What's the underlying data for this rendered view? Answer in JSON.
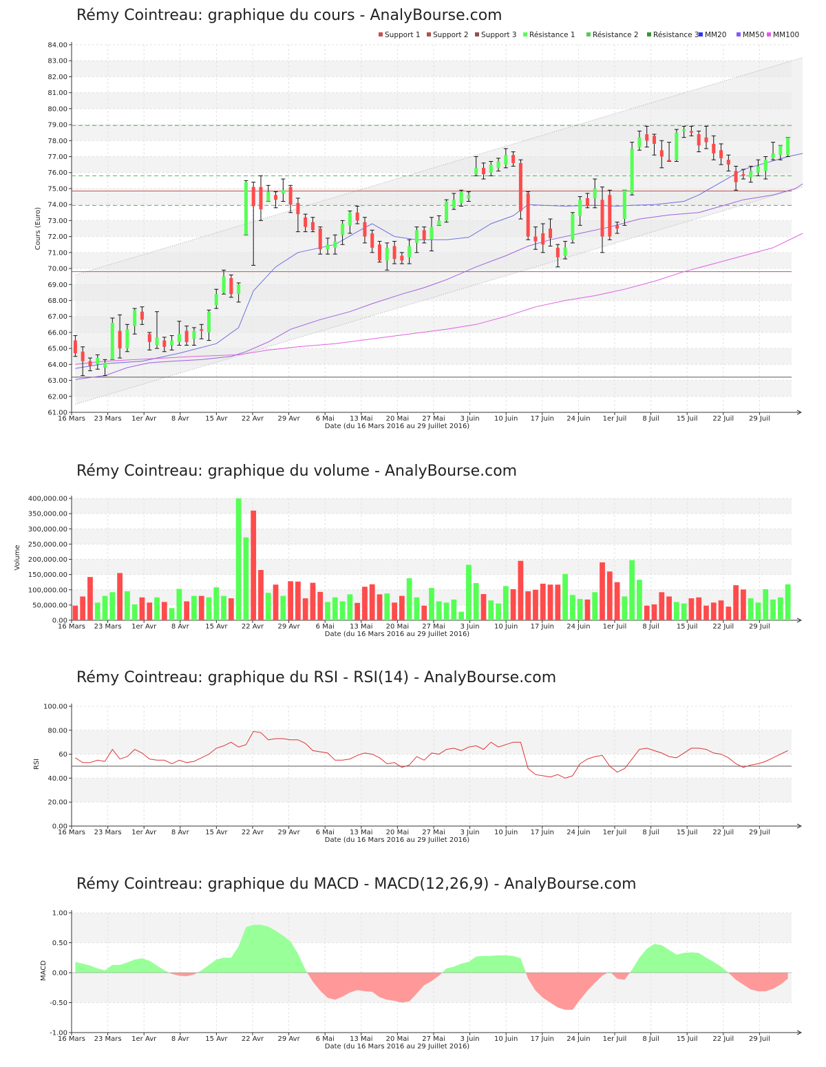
{
  "x_axis": {
    "ticks": [
      "16 Mars",
      "23 Mars",
      "1er Avr",
      "8 Avr",
      "15 Avr",
      "22 Avr",
      "29 Avr",
      "6 Mai",
      "13 Mai",
      "20 Mai",
      "27 Mai",
      "3 Juin",
      "10 Juin",
      "17 Juin",
      "24 Juin",
      "1er Juil",
      "8 Juil",
      "15 Juil",
      "22 Juil",
      "29 Juil"
    ],
    "label": "Date (du 16 Mars 2016 au 29 Juillet 2016)"
  },
  "colors": {
    "up": "#55ff55",
    "down": "#ff4b4b",
    "grid_band": "#f3f3f3",
    "support": "#c85050",
    "resistance": "#55b055",
    "mm20": "#6f6fe0",
    "mm50": "#a060e0",
    "mm100": "#e060e0",
    "rsi_line": "#dd3333",
    "macd_pos": "#99ff99",
    "macd_neg": "#ff9999"
  },
  "chart_data": [
    {
      "id": "price",
      "type": "candlestick",
      "title": "Rémy Cointreau: graphique du cours - AnalyBourse.com",
      "ylabel": "Cours (Euro)",
      "ylim": [
        61,
        84
      ],
      "yticks": [
        "61.00",
        "62.00",
        "63.00",
        "64.00",
        "65.00",
        "66.00",
        "67.00",
        "68.00",
        "69.00",
        "70.00",
        "71.00",
        "72.00",
        "73.00",
        "74.00",
        "75.00",
        "76.00",
        "77.00",
        "78.00",
        "79.00",
        "80.00",
        "81.00",
        "82.00",
        "83.00",
        "84.00"
      ],
      "legend": [
        "Support 1",
        "Support 2",
        "Support 3",
        "Résistance 1",
        "Résistance 2",
        "Résistance 3",
        "MM20",
        "MM50",
        "MM100"
      ],
      "levels": {
        "support1": 74.85,
        "support2": 69.8,
        "support3": 63.2,
        "resistance1": 78.95,
        "resistance2": 75.8,
        "resistance3": 73.95
      },
      "candles": [
        [
          65.5,
          64.7,
          65.8,
          64.5
        ],
        [
          64.8,
          64.2,
          65.1,
          63.3
        ],
        [
          64.2,
          63.9,
          64.4,
          63.6
        ],
        [
          64.0,
          64.4,
          64.6,
          63.7
        ],
        [
          63.8,
          64.1,
          64.3,
          63.3
        ],
        [
          64.3,
          66.6,
          66.9,
          64.3
        ],
        [
          66.1,
          65.0,
          67.1,
          64.4
        ],
        [
          65.0,
          66.2,
          66.5,
          64.8
        ],
        [
          66.4,
          67.4,
          67.5,
          65.9
        ],
        [
          67.3,
          66.8,
          67.6,
          66.5
        ],
        [
          65.9,
          65.4,
          66.0,
          64.9
        ],
        [
          65.2,
          65.7,
          67.3,
          65.0
        ],
        [
          65.5,
          65.1,
          65.7,
          64.8
        ],
        [
          65.2,
          65.5,
          65.8,
          64.9
        ],
        [
          65.4,
          65.9,
          66.7,
          65.2
        ],
        [
          66.1,
          65.4,
          66.4,
          65.2
        ],
        [
          65.6,
          66.1,
          66.3,
          65.2
        ],
        [
          66.2,
          66.1,
          66.5,
          65.6
        ],
        [
          66.0,
          67.3,
          67.4,
          65.5
        ],
        [
          67.7,
          68.4,
          68.7,
          67.5
        ],
        [
          68.5,
          69.5,
          69.9,
          68.4
        ],
        [
          69.4,
          68.4,
          69.6,
          68.2
        ],
        [
          68.4,
          69.0,
          69.1,
          67.9
        ],
        [
          72.1,
          75.4,
          75.5,
          72.1
        ],
        [
          75.1,
          73.9,
          75.4,
          70.2
        ],
        [
          75.1,
          73.7,
          75.8,
          73.0
        ],
        [
          74.2,
          74.8,
          75.2,
          74.2
        ],
        [
          74.6,
          74.3,
          74.8,
          73.8
        ],
        [
          74.7,
          74.9,
          75.6,
          74.2
        ],
        [
          75.1,
          74.0,
          75.2,
          73.5
        ],
        [
          74.1,
          73.4,
          74.4,
          72.3
        ],
        [
          73.2,
          72.6,
          73.4,
          72.3
        ],
        [
          72.9,
          72.4,
          73.2,
          72.3
        ],
        [
          72.5,
          71.2,
          72.6,
          70.9
        ],
        [
          71.2,
          71.5,
          71.9,
          70.9
        ],
        [
          71.3,
          71.7,
          72.1,
          70.9
        ],
        [
          72.1,
          72.8,
          73.0,
          71.5
        ],
        [
          72.7,
          73.5,
          73.6,
          72.2
        ],
        [
          73.5,
          73.0,
          73.9,
          72.8
        ],
        [
          72.9,
          72.0,
          73.2,
          71.6
        ],
        [
          72.2,
          71.3,
          72.4,
          71.0
        ],
        [
          71.5,
          70.5,
          71.7,
          70.4
        ],
        [
          70.5,
          71.3,
          71.6,
          69.9
        ],
        [
          71.4,
          70.6,
          71.7,
          70.3
        ],
        [
          70.8,
          70.5,
          71.0,
          70.3
        ],
        [
          70.7,
          71.4,
          71.8,
          70.3
        ],
        [
          71.6,
          72.4,
          72.6,
          71.0
        ],
        [
          72.4,
          71.8,
          72.6,
          71.6
        ],
        [
          71.8,
          72.6,
          73.2,
          71.1
        ],
        [
          72.7,
          73.0,
          73.3,
          72.7
        ],
        [
          73.0,
          74.2,
          74.3,
          72.9
        ],
        [
          73.8,
          74.3,
          74.7,
          73.7
        ],
        [
          74.1,
          74.8,
          74.9,
          73.9
        ],
        [
          74.4,
          74.6,
          74.8,
          74.2
        ],
        [
          75.9,
          76.3,
          77.0,
          75.8
        ],
        [
          76.3,
          75.9,
          76.6,
          75.6
        ],
        [
          76.0,
          76.5,
          76.7,
          75.8
        ],
        [
          76.3,
          76.7,
          76.9,
          76.1
        ],
        [
          76.5,
          77.1,
          77.5,
          76.3
        ],
        [
          77.1,
          76.6,
          77.3,
          76.4
        ],
        [
          76.6,
          73.6,
          76.8,
          73.1
        ],
        [
          74.7,
          72.0,
          74.8,
          71.8
        ],
        [
          72.0,
          71.7,
          72.6,
          71.2
        ],
        [
          72.2,
          71.5,
          72.8,
          71.0
        ],
        [
          72.5,
          71.9,
          73.1,
          71.4
        ],
        [
          71.3,
          70.7,
          71.5,
          70.1
        ],
        [
          70.8,
          71.3,
          71.7,
          70.6
        ],
        [
          71.8,
          73.4,
          73.5,
          71.6
        ],
        [
          73.3,
          74.3,
          74.5,
          72.7
        ],
        [
          74.4,
          73.9,
          74.7,
          73.8
        ],
        [
          74.4,
          75.0,
          75.6,
          73.8
        ],
        [
          74.3,
          72.0,
          75.1,
          71.0
        ],
        [
          74.6,
          72.0,
          74.9,
          71.8
        ],
        [
          72.7,
          72.5,
          72.9,
          72.2
        ],
        [
          73.1,
          74.9,
          74.9,
          72.7
        ],
        [
          74.7,
          77.5,
          77.9,
          74.6
        ],
        [
          77.6,
          78.2,
          78.6,
          77.4
        ],
        [
          78.4,
          78.0,
          78.9,
          77.6
        ],
        [
          78.3,
          77.8,
          78.4,
          77.1
        ],
        [
          77.4,
          77.0,
          78.0,
          76.3
        ],
        [
          76.8,
          76.7,
          77.9,
          76.7
        ],
        [
          76.8,
          78.5,
          78.7,
          76.7
        ],
        [
          78.6,
          78.7,
          78.9,
          78.2
        ],
        [
          78.6,
          78.5,
          78.9,
          78.3
        ],
        [
          78.4,
          77.7,
          78.6,
          77.3
        ],
        [
          78.2,
          77.9,
          78.9,
          77.5
        ],
        [
          77.8,
          77.2,
          78.3,
          76.8
        ],
        [
          77.4,
          76.9,
          77.8,
          76.5
        ],
        [
          76.8,
          76.5,
          77.1,
          76.1
        ],
        [
          76.1,
          75.4,
          76.4,
          74.9
        ],
        [
          75.9,
          75.8,
          76.2,
          75.6
        ],
        [
          75.7,
          76.1,
          76.4,
          75.4
        ],
        [
          76.0,
          76.4,
          76.8,
          75.8
        ],
        [
          76.1,
          76.8,
          77.0,
          75.6
        ],
        [
          76.9,
          77.2,
          77.9,
          76.8
        ],
        [
          77.1,
          77.7,
          77.7,
          76.8
        ],
        [
          77.1,
          78.2,
          78.2,
          77.0
        ]
      ],
      "mm20": [
        [
          0,
          63.75
        ],
        [
          4,
          64.05
        ],
        [
          9,
          64.2
        ],
        [
          14,
          64.7
        ],
        [
          19,
          65.3
        ],
        [
          22,
          66.3
        ],
        [
          24,
          68.6
        ],
        [
          27,
          70.1
        ],
        [
          30,
          71.0
        ],
        [
          35,
          71.5
        ],
        [
          38,
          72.3
        ],
        [
          40,
          72.8
        ],
        [
          43,
          72.0
        ],
        [
          46,
          71.8
        ],
        [
          50,
          71.8
        ],
        [
          53,
          71.95
        ],
        [
          56,
          72.8
        ],
        [
          59,
          73.3
        ],
        [
          61,
          74.0
        ],
        [
          63,
          73.95
        ],
        [
          66,
          73.9
        ],
        [
          70,
          73.95
        ],
        [
          73,
          73.9
        ],
        [
          75,
          73.95
        ],
        [
          78,
          74.0
        ],
        [
          82,
          74.2
        ],
        [
          84,
          74.6
        ],
        [
          87,
          75.4
        ],
        [
          90,
          76.2
        ],
        [
          93,
          76.6
        ],
        [
          96,
          77.0
        ],
        [
          98,
          77.2
        ]
      ],
      "mm50": [
        [
          0,
          63.05
        ],
        [
          4,
          63.3
        ],
        [
          7,
          63.8
        ],
        [
          10,
          64.1
        ],
        [
          13,
          64.2
        ],
        [
          17,
          64.3
        ],
        [
          21,
          64.5
        ],
        [
          23,
          64.8
        ],
        [
          26,
          65.4
        ],
        [
          29,
          66.2
        ],
        [
          33,
          66.8
        ],
        [
          37,
          67.3
        ],
        [
          40,
          67.8
        ],
        [
          44,
          68.4
        ],
        [
          47,
          68.8
        ],
        [
          50,
          69.3
        ],
        [
          54,
          70.1
        ],
        [
          58,
          70.8
        ],
        [
          61,
          71.4
        ],
        [
          64,
          71.8
        ],
        [
          68,
          72.2
        ],
        [
          72,
          72.6
        ],
        [
          76,
          73.1
        ],
        [
          80,
          73.35
        ],
        [
          84,
          73.5
        ],
        [
          87,
          73.9
        ],
        [
          90,
          74.3
        ],
        [
          94,
          74.6
        ],
        [
          97,
          75.0
        ],
        [
          98,
          75.3
        ]
      ],
      "mm100": [
        [
          0,
          64.0
        ],
        [
          4,
          64.2
        ],
        [
          8,
          64.3
        ],
        [
          12,
          64.4
        ],
        [
          16,
          64.5
        ],
        [
          22,
          64.6
        ],
        [
          26,
          64.9
        ],
        [
          30,
          65.1
        ],
        [
          35,
          65.3
        ],
        [
          40,
          65.6
        ],
        [
          45,
          65.9
        ],
        [
          50,
          66.2
        ],
        [
          54,
          66.5
        ],
        [
          58,
          67.0
        ],
        [
          62,
          67.6
        ],
        [
          66,
          68.0
        ],
        [
          70,
          68.3
        ],
        [
          74,
          68.7
        ],
        [
          78,
          69.2
        ],
        [
          82,
          69.8
        ],
        [
          86,
          70.3
        ],
        [
          90,
          70.8
        ],
        [
          94,
          71.3
        ],
        [
          98,
          72.2
        ]
      ],
      "channel_upper": [
        [
          0,
          69.6
        ],
        [
          98,
          83.2
        ]
      ],
      "channel_lower": [
        [
          0,
          61.5
        ],
        [
          98,
          75.1
        ]
      ]
    },
    {
      "id": "volume",
      "type": "bar",
      "title": "Rémy Cointreau: graphique du volume - AnalyBourse.com",
      "ylabel": "Volume",
      "ylim": [
        0,
        400000
      ],
      "yticks": [
        "0.00",
        "50,000.00",
        "100,000.00",
        "150,000.00",
        "200,000.00",
        "250,000.00",
        "300,000.00",
        "350,000.00",
        "400,000.00"
      ],
      "values": [
        48000,
        78000,
        142000,
        58000,
        80000,
        92000,
        155000,
        95000,
        52000,
        75000,
        58000,
        75000,
        60000,
        40000,
        103000,
        62000,
        80000,
        80000,
        75000,
        108000,
        80000,
        72000,
        400000,
        272000,
        360000,
        165000,
        90000,
        117000,
        80000,
        128000,
        127000,
        72000,
        123000,
        93000,
        60000,
        75000,
        62000,
        85000,
        57000,
        110000,
        118000,
        85000,
        88000,
        58000,
        80000,
        138000,
        75000,
        48000,
        106000,
        62000,
        58000,
        68000,
        28000,
        182000,
        122000,
        86000,
        65000,
        55000,
        112000,
        102000,
        195000,
        95000,
        100000,
        120000,
        117000,
        117000,
        152000,
        83000,
        70000,
        68000,
        92000,
        190000,
        160000,
        125000,
        78000,
        197000,
        133000,
        48000,
        52000,
        92000,
        78000,
        60000,
        55000,
        72000,
        75000,
        48000,
        58000,
        65000,
        45000,
        115000,
        101000,
        72000,
        58000,
        102000,
        68000,
        75000,
        118000
      ]
    },
    {
      "id": "rsi",
      "type": "line",
      "title": "Rémy Cointreau: graphique du RSI - RSI(14) - AnalyBourse.com",
      "ylabel": "RSI",
      "ylim": [
        0,
        100
      ],
      "yticks": [
        "0.00",
        "20.00",
        "40.00",
        "60",
        "80.00",
        "100.00"
      ],
      "reference": 50,
      "values": [
        57,
        53,
        53,
        55,
        54,
        64,
        56,
        58,
        64,
        61,
        56,
        55,
        55,
        52,
        55,
        53,
        54,
        57,
        60,
        65,
        67,
        70,
        66,
        68,
        79,
        78,
        72,
        73,
        73,
        72,
        72,
        69,
        63,
        62,
        61,
        55,
        55,
        56,
        59,
        61,
        60,
        57,
        52,
        53,
        49,
        51,
        58,
        55,
        61,
        60,
        64,
        65,
        63,
        66,
        67,
        64,
        70,
        66,
        68,
        70,
        70,
        48,
        43,
        42,
        41,
        43,
        40,
        42,
        52,
        56,
        58,
        59,
        50,
        45,
        48,
        56,
        64,
        65,
        63,
        61,
        58,
        57,
        61,
        65,
        65,
        64,
        61,
        60,
        57,
        52,
        49,
        51,
        52,
        54,
        57,
        60,
        63
      ]
    },
    {
      "id": "macd",
      "type": "area",
      "title": "Rémy Cointreau: graphique du MACD - MACD(12,26,9) - AnalyBourse.com",
      "ylabel": "MACD",
      "ylim": [
        -1,
        1
      ],
      "yticks": [
        "-1.00",
        "-0.50",
        "0.00",
        "0.50",
        "1.00"
      ],
      "values": [
        0.18,
        0.15,
        0.12,
        0.07,
        0.04,
        0.13,
        0.13,
        0.17,
        0.22,
        0.24,
        0.2,
        0.12,
        0.04,
        -0.02,
        -0.05,
        -0.06,
        -0.03,
        0.04,
        0.13,
        0.22,
        0.25,
        0.25,
        0.44,
        0.76,
        0.8,
        0.8,
        0.77,
        0.7,
        0.62,
        0.52,
        0.32,
        0.05,
        -0.15,
        -0.3,
        -0.42,
        -0.45,
        -0.4,
        -0.33,
        -0.29,
        -0.31,
        -0.32,
        -0.41,
        -0.45,
        -0.47,
        -0.5,
        -0.48,
        -0.35,
        -0.21,
        -0.14,
        -0.05,
        0.07,
        0.1,
        0.15,
        0.18,
        0.27,
        0.28,
        0.28,
        0.29,
        0.29,
        0.28,
        0.24,
        -0.1,
        -0.3,
        -0.42,
        -0.5,
        -0.58,
        -0.62,
        -0.62,
        -0.45,
        -0.3,
        -0.17,
        -0.05,
        0.02,
        -0.1,
        -0.12,
        0.05,
        0.25,
        0.4,
        0.48,
        0.46,
        0.38,
        0.3,
        0.33,
        0.34,
        0.33,
        0.25,
        0.18,
        0.1,
        0.0,
        -0.12,
        -0.2,
        -0.28,
        -0.31,
        -0.31,
        -0.27,
        -0.2,
        -0.1
      ]
    }
  ]
}
